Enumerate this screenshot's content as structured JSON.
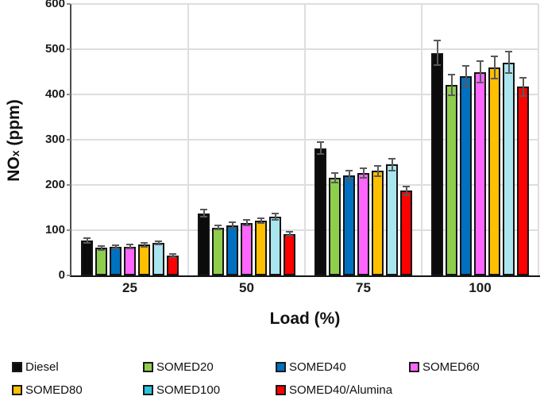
{
  "chart_data": {
    "type": "bar",
    "title": "",
    "xlabel": "Load (%)",
    "ylabel": "NOx (ppm)",
    "ylabel_parts": {
      "base": "NO",
      "sub": "x",
      "rest": " (ppm)"
    },
    "categories": [
      "25",
      "50",
      "75",
      "100"
    ],
    "ylim": [
      0,
      600
    ],
    "yticks": [
      0,
      100,
      200,
      300,
      400,
      500,
      600
    ],
    "grid": true,
    "legend_position": "bottom",
    "series": [
      {
        "name": "Diesel",
        "color": "#0b0b0b",
        "legend_color": "#0b0b0b",
        "values": [
          77,
          137,
          281,
          492
        ],
        "errors": [
          5,
          8,
          13,
          27
        ]
      },
      {
        "name": "SOMED20",
        "color": "#8fce4c",
        "legend_color": "#8fce4c",
        "values": [
          61,
          106,
          216,
          421
        ],
        "errors": [
          4,
          5,
          11,
          22
        ]
      },
      {
        "name": "SOMED40",
        "color": "#0070c0",
        "legend_color": "#0070c0",
        "values": [
          63,
          111,
          221,
          441
        ],
        "errors": [
          4,
          6,
          11,
          23
        ]
      },
      {
        "name": "SOMED60",
        "color": "#ff66ff",
        "legend_color": "#ff66ff",
        "values": [
          64,
          116,
          226,
          450
        ],
        "errors": [
          4,
          6,
          11,
          24
        ]
      },
      {
        "name": "SOMED80",
        "color": "#ffc000",
        "legend_color": "#ffc000",
        "values": [
          68,
          121,
          231,
          460
        ],
        "errors": [
          4,
          6,
          11,
          25
        ]
      },
      {
        "name": "SOMED100",
        "color": "#a9e6f0",
        "legend_color": "#2bc4dd",
        "values": [
          72,
          129,
          245,
          471
        ],
        "errors": [
          4,
          7,
          13,
          23
        ]
      },
      {
        "name": "SOMED40/Alumina",
        "color": "#ff0000",
        "legend_color": "#ff0000",
        "values": [
          44,
          92,
          187,
          417
        ],
        "errors": [
          3,
          5,
          9,
          20
        ]
      }
    ],
    "colors": {
      "gridline": "#dedede",
      "y_axis_line": "#4d4d4d",
      "x_axis_line": "#141414",
      "error_bar": "#595959",
      "bar_border": "#141414",
      "text": "#1a1a1a"
    }
  }
}
